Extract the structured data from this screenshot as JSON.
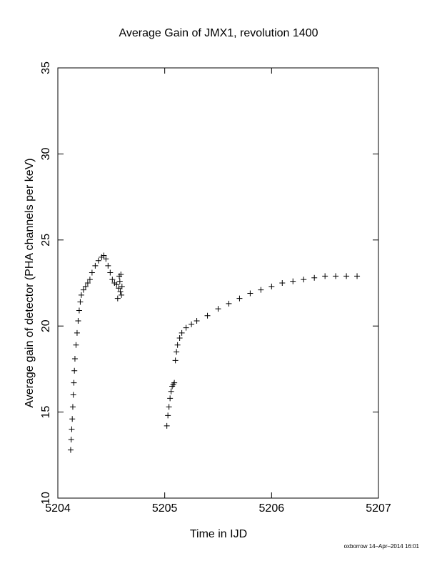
{
  "chart_data": {
    "type": "scatter",
    "title": "Average Gain of JMX1, revolution 1400",
    "x_label": "Time in IJD",
    "y_label": "Average gain of detector (PHA channels per keV)",
    "annotation": "oxborrow 14–Apr–2014 16:01",
    "xlim": [
      5204,
      5207
    ],
    "xticks": [
      5204,
      5205,
      5206,
      5207
    ],
    "ylim": [
      10,
      35
    ],
    "yticks": [
      10,
      15,
      20,
      25,
      30,
      35
    ],
    "series": [
      {
        "color": "#000000",
        "x": [
          5204.12,
          5204.125,
          5204.13,
          5204.135,
          5204.14,
          5204.145,
          5204.15,
          5204.155,
          5204.16,
          5204.17,
          5204.18,
          5204.19,
          5204.2,
          5204.21,
          5204.22,
          5204.24,
          5204.26,
          5204.28,
          5204.3,
          5204.32,
          5204.35,
          5204.38,
          5204.41,
          5204.43,
          5204.45,
          5204.47,
          5204.49,
          5204.51,
          5204.53,
          5204.55,
          5204.56,
          5204.57,
          5204.575,
          5204.58,
          5204.585,
          5204.59,
          5204.595,
          5204.6,
          5205.02,
          5205.03,
          5205.04,
          5205.05,
          5205.06,
          5205.07,
          5205.08,
          5205.09,
          5205.1,
          5205.11,
          5205.12,
          5205.14,
          5205.16,
          5205.2,
          5205.25,
          5205.3,
          5205.4,
          5205.5,
          5205.6,
          5205.7,
          5205.8,
          5205.9,
          5206.0,
          5206.1,
          5206.2,
          5206.3,
          5206.4,
          5206.5,
          5206.6,
          5206.7,
          5206.8
        ],
        "values": [
          12.8,
          13.4,
          14.0,
          14.6,
          15.3,
          16.0,
          16.7,
          17.4,
          18.1,
          18.9,
          19.6,
          20.3,
          20.9,
          21.4,
          21.8,
          22.1,
          22.3,
          22.5,
          22.7,
          23.1,
          23.5,
          23.8,
          24.0,
          24.1,
          23.9,
          23.5,
          23.1,
          22.7,
          22.5,
          22.4,
          21.6,
          22.2,
          22.9,
          22.6,
          22.0,
          23.0,
          21.8,
          22.3,
          14.2,
          14.8,
          15.3,
          15.8,
          16.2,
          16.5,
          16.6,
          16.7,
          18.0,
          18.5,
          18.9,
          19.3,
          19.6,
          19.9,
          20.1,
          20.3,
          20.6,
          21.0,
          21.3,
          21.6,
          21.9,
          22.1,
          22.3,
          22.5,
          22.6,
          22.7,
          22.8,
          22.9,
          22.9,
          22.9,
          22.9
        ]
      }
    ]
  }
}
